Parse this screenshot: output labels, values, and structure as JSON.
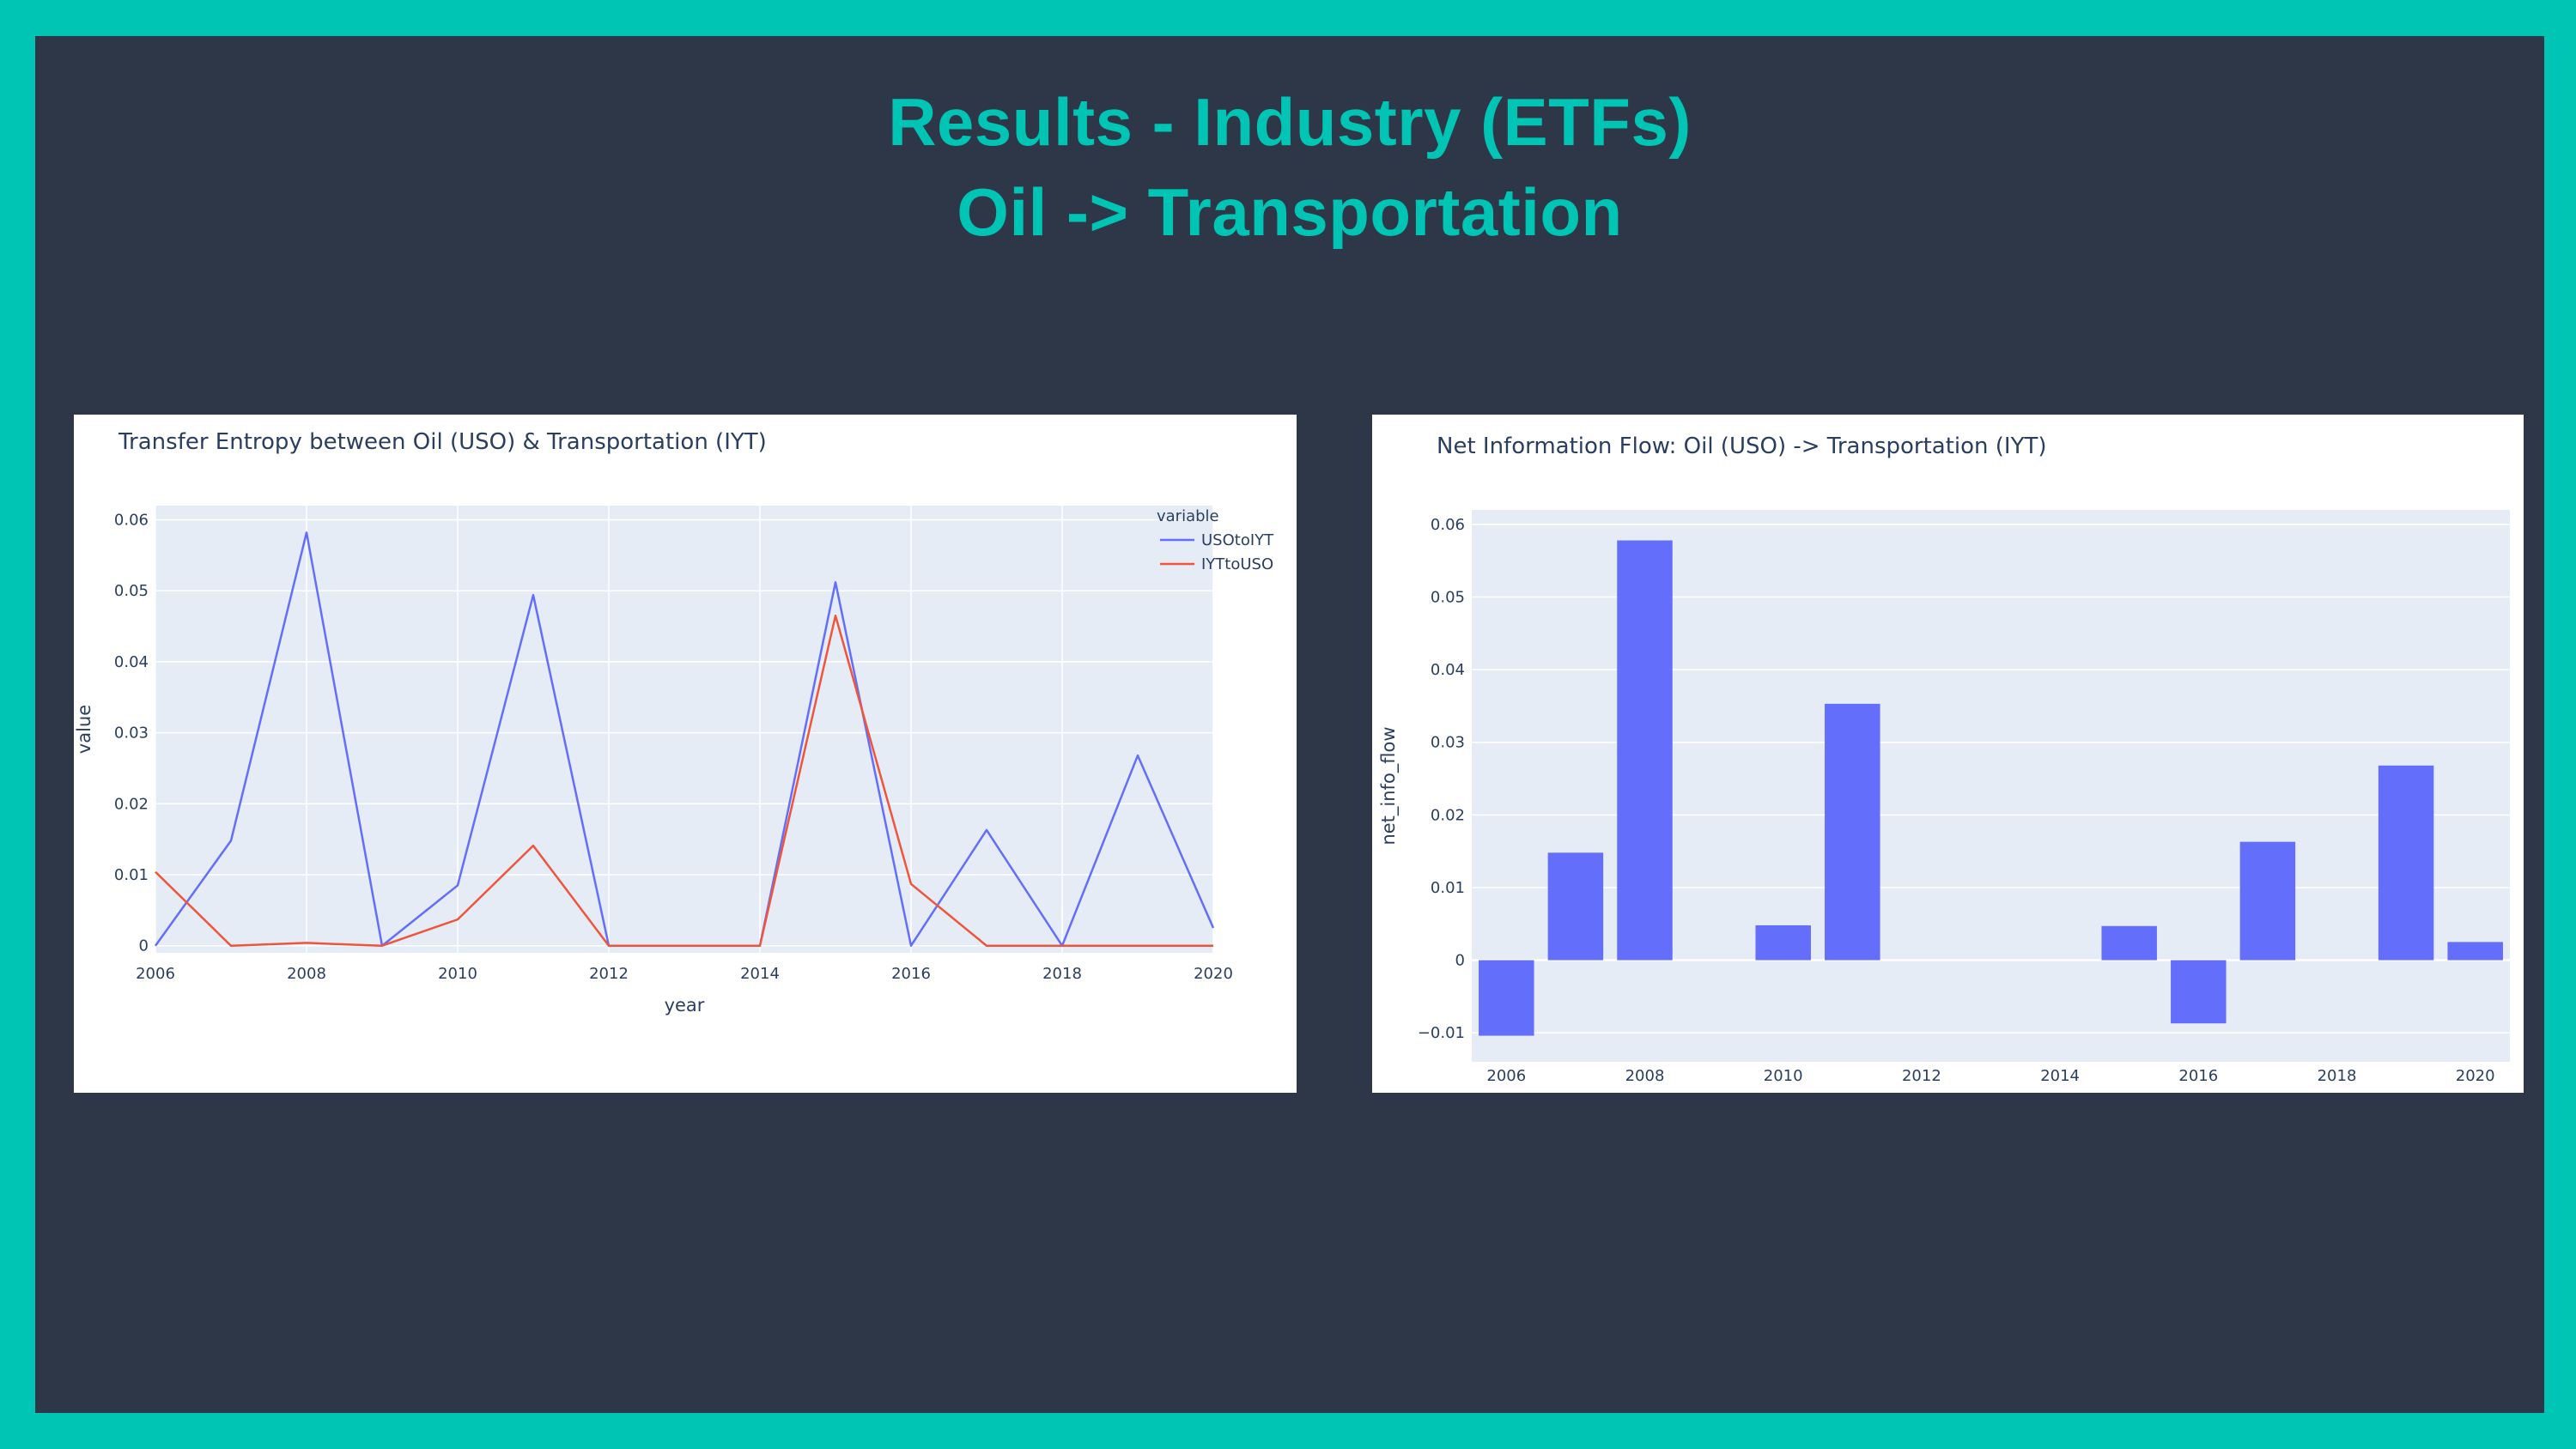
{
  "slide": {
    "title_line1": "Results - Industry (ETFs)",
    "title_line2": "Oil -> Transportation",
    "background": "#2e3748",
    "frame_color": "#00c4b4",
    "title_color": "#00c4b4"
  },
  "chart_data": [
    {
      "type": "line",
      "title": "Transfer Entropy between Oil (USO) & Transportation (IYT)",
      "xlabel": "year",
      "ylabel": "value",
      "xlim": [
        2006,
        2020
      ],
      "ylim": [
        -0.001,
        0.062
      ],
      "xticks": [
        2006,
        2008,
        2010,
        2012,
        2014,
        2016,
        2018,
        2020
      ],
      "yticks": [
        0,
        0.01,
        0.02,
        0.03,
        0.04,
        0.05,
        0.06
      ],
      "ytick_labels": [
        "0",
        "0.01",
        "0.02",
        "0.03",
        "0.04",
        "0.05",
        "0.06"
      ],
      "legend_title": "variable",
      "legend_position": "right",
      "grid": true,
      "x": [
        2006,
        2007,
        2008,
        2009,
        2010,
        2011,
        2012,
        2013,
        2014,
        2015,
        2016,
        2017,
        2018,
        2019,
        2020
      ],
      "series": [
        {
          "name": "USOtoIYT",
          "color": "#636efa",
          "values": [
            0.0,
            0.0148,
            0.0582,
            0.0,
            0.0085,
            0.0494,
            0.0,
            0.0,
            0.0,
            0.0512,
            0.0,
            0.0163,
            0.0,
            0.0268,
            0.0025
          ]
        },
        {
          "name": "IYTtoUSO",
          "color": "#ef553b",
          "values": [
            0.0104,
            0.0,
            0.0004,
            0.0,
            0.0037,
            0.0141,
            0.0,
            0.0,
            0.0,
            0.0465,
            0.0087,
            0.0,
            0.0,
            0.0,
            0.0
          ]
        }
      ]
    },
    {
      "type": "bar",
      "title": "Net Information Flow: Oil (USO) -> Transportation (IYT)",
      "xlabel": "year",
      "ylabel": "net_info_flow",
      "xlim": [
        2005.5,
        2020.5
      ],
      "ylim": [
        -0.014,
        0.062
      ],
      "xticks": [
        2006,
        2008,
        2010,
        2012,
        2014,
        2016,
        2018,
        2020
      ],
      "yticks": [
        -0.01,
        0,
        0.01,
        0.02,
        0.03,
        0.04,
        0.05,
        0.06
      ],
      "ytick_labels": [
        "−0.01",
        "0",
        "0.01",
        "0.02",
        "0.03",
        "0.04",
        "0.05",
        "0.06"
      ],
      "grid": true,
      "bar_color": "#636efa",
      "categories": [
        2006,
        2007,
        2008,
        2009,
        2010,
        2011,
        2012,
        2013,
        2014,
        2015,
        2016,
        2017,
        2018,
        2019,
        2020
      ],
      "values": [
        -0.0104,
        0.0148,
        0.0578,
        0.0,
        0.0048,
        0.0353,
        0.0,
        0.0,
        0.0,
        0.0047,
        -0.0087,
        0.0163,
        0.0,
        0.0268,
        0.0025
      ]
    }
  ]
}
